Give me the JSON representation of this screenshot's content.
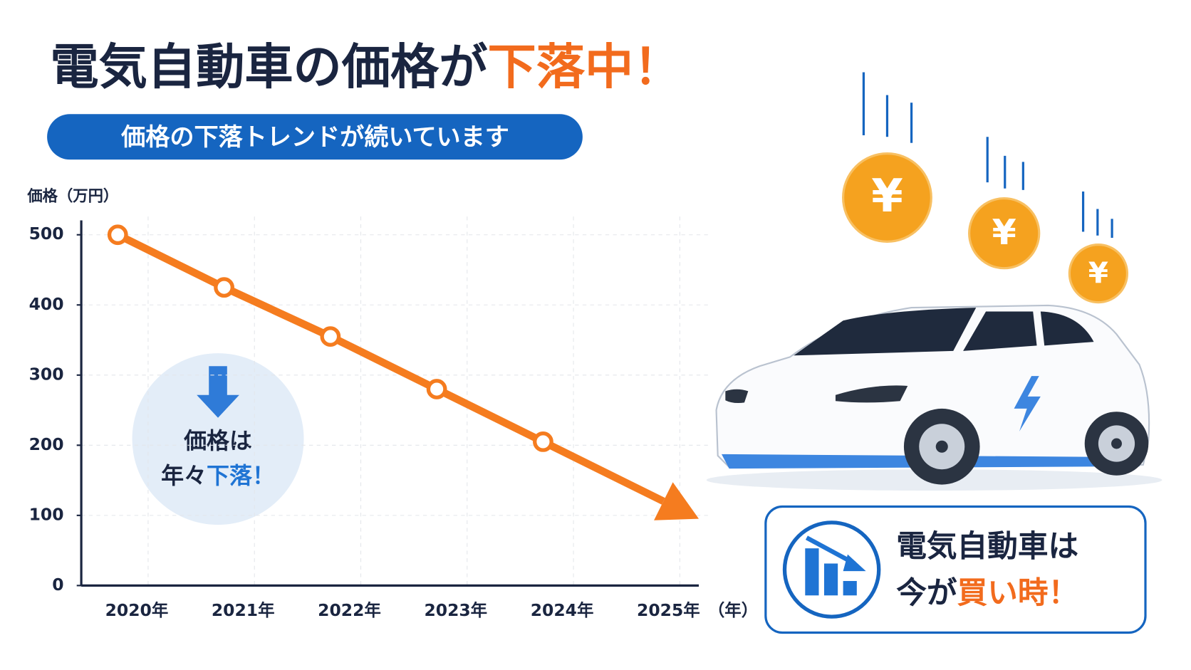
{
  "title": {
    "main": "電気自動車の価格が",
    "highlight": "下落中！"
  },
  "subtitle": "価格の下落トレンドが続いています",
  "chart_data": {
    "type": "line",
    "y_label": "価格（万円）",
    "x_label": "（年）",
    "categories": [
      "2020年",
      "2021年",
      "2022年",
      "2023年",
      "2024年",
      "2025年"
    ],
    "series": [
      {
        "name": "価格",
        "color": "#f57c1f",
        "values": [
          500,
          425,
          355,
          280,
          205,
          null
        ]
      }
    ],
    "ylim": [
      0,
      500
    ],
    "yticks": [
      0,
      100,
      200,
      300,
      400,
      500
    ],
    "grid": true
  },
  "callout": {
    "line1": "価格は",
    "line2": "年々",
    "line2_highlight": "下落！"
  },
  "cta": {
    "line1": "電気自動車は",
    "line2": "今が",
    "line2_highlight": "買い時！"
  },
  "coins": [
    "¥",
    "¥",
    "¥"
  ]
}
